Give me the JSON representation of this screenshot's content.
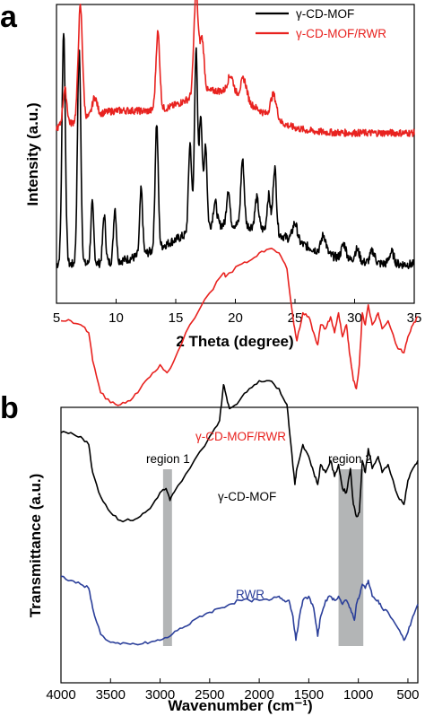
{
  "chart_data": [
    {
      "panel_label": "a",
      "type": "line",
      "xlabel": "2 Theta (degree)",
      "ylabel": "Intensity (a.u.)",
      "xlim": [
        5,
        35
      ],
      "xticks": [
        "5",
        "10",
        "15",
        "20",
        "25",
        "30",
        "35"
      ],
      "y_tick_labels": false,
      "legend_position": "top-right",
      "series": [
        {
          "name": "γ-CD-MOF",
          "color": "#000000",
          "baseline": 0.13,
          "noise": 0.015,
          "peaks": [
            [
              5.6,
              0.78,
              0.14
            ],
            [
              6.9,
              0.72,
              0.14
            ],
            [
              8.0,
              0.2,
              0.12
            ],
            [
              9.0,
              0.16,
              0.12
            ],
            [
              9.9,
              0.18,
              0.12
            ],
            [
              12.1,
              0.22,
              0.12
            ],
            [
              13.4,
              0.42,
              0.13
            ],
            [
              16.2,
              0.3,
              0.13
            ],
            [
              16.7,
              0.6,
              0.13
            ],
            [
              17.1,
              0.38,
              0.13
            ],
            [
              17.5,
              0.28,
              0.12
            ],
            [
              18.3,
              0.08,
              0.15
            ],
            [
              19.4,
              0.12,
              0.13
            ],
            [
              20.6,
              0.22,
              0.14
            ],
            [
              21.8,
              0.1,
              0.15
            ],
            [
              22.8,
              0.12,
              0.14
            ],
            [
              23.3,
              0.22,
              0.14
            ],
            [
              25.0,
              0.06,
              0.2
            ],
            [
              27.4,
              0.06,
              0.2
            ],
            [
              29.1,
              0.05,
              0.2
            ],
            [
              30.2,
              0.04,
              0.2
            ],
            [
              31.5,
              0.04,
              0.2
            ],
            [
              33.1,
              0.04,
              0.2
            ]
          ],
          "humps": [
            [
              17.5,
              0.1,
              3.5
            ],
            [
              23.0,
              0.08,
              3.5
            ]
          ]
        },
        {
          "name": "γ-CD-MOF/RWR",
          "color": "#e8221f",
          "baseline": 0.57,
          "noise": 0.012,
          "peaks": [
            [
              5.7,
              0.12,
              0.17
            ],
            [
              7.0,
              0.38,
              0.18
            ],
            [
              8.2,
              0.06,
              0.2
            ],
            [
              13.5,
              0.26,
              0.16
            ],
            [
              16.7,
              0.34,
              0.18
            ],
            [
              17.2,
              0.18,
              0.18
            ],
            [
              19.6,
              0.06,
              0.25
            ],
            [
              20.7,
              0.07,
              0.25
            ],
            [
              23.2,
              0.08,
              0.25
            ]
          ],
          "humps": [
            [
              10.0,
              0.07,
              3.0
            ],
            [
              18.5,
              0.14,
              3.2
            ]
          ]
        }
      ]
    },
    {
      "panel_label": "b",
      "type": "line",
      "xlabel": "Wavenumber (cm⁻¹)",
      "ylabel": "Transmittance (a.u.)",
      "xlim": [
        4000,
        400
      ],
      "xticks": [
        "4000",
        "3500",
        "3000",
        "2500",
        "2000",
        "1500",
        "1000",
        "500"
      ],
      "y_tick_labels": false,
      "annotations": [
        {
          "text": "γ-CD-MOF/RWR",
          "color": "#e8221f"
        },
        {
          "text": "γ-CD-MOF",
          "color": "#000000"
        },
        {
          "text": "RWR",
          "color": "#2b3f9a"
        },
        {
          "text": "region 1",
          "color": "#000000"
        },
        {
          "text": "region 2",
          "color": "#000000"
        }
      ],
      "shaded_regions": [
        {
          "label": "region 1",
          "x": [
            2970,
            2880
          ]
        },
        {
          "label": "region 2",
          "x": [
            1200,
            950
          ]
        }
      ],
      "series": [
        {
          "name": "γ-CD-MOF/RWR",
          "color": "#e8221f",
          "offset": 0.58,
          "points": [
            [
              4000,
              0.23
            ],
            [
              3900,
              0.23
            ],
            [
              3800,
              0.22
            ],
            [
              3720,
              0.2
            ],
            [
              3680,
              0.13
            ],
            [
              3600,
              0.05
            ],
            [
              3500,
              0.025
            ],
            [
              3400,
              0.02
            ],
            [
              3300,
              0.03
            ],
            [
              3200,
              0.06
            ],
            [
              3100,
              0.09
            ],
            [
              3000,
              0.12
            ],
            [
              2930,
              0.1
            ],
            [
              2860,
              0.13
            ],
            [
              2700,
              0.22
            ],
            [
              2500,
              0.3
            ],
            [
              2360,
              0.35
            ],
            [
              2340,
              0.34
            ],
            [
              2200,
              0.37
            ],
            [
              2100,
              0.38
            ],
            [
              2000,
              0.4
            ],
            [
              1900,
              0.41
            ],
            [
              1800,
              0.4
            ],
            [
              1720,
              0.36
            ],
            [
              1650,
              0.22
            ],
            [
              1620,
              0.18
            ],
            [
              1560,
              0.25
            ],
            [
              1500,
              0.24
            ],
            [
              1450,
              0.2
            ],
            [
              1410,
              0.17
            ],
            [
              1380,
              0.22
            ],
            [
              1330,
              0.21
            ],
            [
              1280,
              0.24
            ],
            [
              1240,
              0.2
            ],
            [
              1200,
              0.25
            ],
            [
              1160,
              0.19
            ],
            [
              1120,
              0.22
            ],
            [
              1090,
              0.15
            ],
            [
              1050,
              0.08
            ],
            [
              1020,
              0.06
            ],
            [
              990,
              0.12
            ],
            [
              960,
              0.25
            ],
            [
              930,
              0.22
            ],
            [
              900,
              0.27
            ],
            [
              860,
              0.22
            ],
            [
              800,
              0.25
            ],
            [
              760,
              0.21
            ],
            [
              700,
              0.23
            ],
            [
              600,
              0.16
            ],
            [
              540,
              0.15
            ],
            [
              500,
              0.19
            ],
            [
              450,
              0.22
            ],
            [
              400,
              0.24
            ]
          ]
        },
        {
          "name": "γ-CD-MOF",
          "color": "#000000",
          "offset": 0.3,
          "points": [
            [
              4000,
              0.23
            ],
            [
              3900,
              0.23
            ],
            [
              3800,
              0.22
            ],
            [
              3720,
              0.2
            ],
            [
              3680,
              0.13
            ],
            [
              3600,
              0.07
            ],
            [
              3500,
              0.03
            ],
            [
              3400,
              0.01
            ],
            [
              3300,
              0.01
            ],
            [
              3200,
              0.02
            ],
            [
              3100,
              0.04
            ],
            [
              3000,
              0.08
            ],
            [
              2940,
              0.09
            ],
            [
              2900,
              0.06
            ],
            [
              2860,
              0.08
            ],
            [
              2700,
              0.14
            ],
            [
              2500,
              0.22
            ],
            [
              2400,
              0.26
            ],
            [
              2360,
              0.35
            ],
            [
              2340,
              0.33
            ],
            [
              2300,
              0.29
            ],
            [
              2200,
              0.31
            ],
            [
              2100,
              0.34
            ],
            [
              2000,
              0.36
            ],
            [
              1900,
              0.36
            ],
            [
              1800,
              0.34
            ],
            [
              1720,
              0.3
            ],
            [
              1680,
              0.2
            ],
            [
              1640,
              0.1
            ],
            [
              1620,
              0.14
            ],
            [
              1560,
              0.2
            ],
            [
              1500,
              0.17
            ],
            [
              1450,
              0.13
            ],
            [
              1410,
              0.1
            ],
            [
              1380,
              0.15
            ],
            [
              1330,
              0.13
            ],
            [
              1280,
              0.16
            ],
            [
              1240,
              0.12
            ],
            [
              1200,
              0.15
            ],
            [
              1160,
              0.09
            ],
            [
              1120,
              0.08
            ],
            [
              1080,
              0.14
            ],
            [
              1050,
              0.05
            ],
            [
              1020,
              0.02
            ],
            [
              990,
              0.03
            ],
            [
              960,
              0.16
            ],
            [
              930,
              0.13
            ],
            [
              900,
              0.19
            ],
            [
              860,
              0.14
            ],
            [
              800,
              0.17
            ],
            [
              760,
              0.13
            ],
            [
              700,
              0.15
            ],
            [
              600,
              0.07
            ],
            [
              540,
              0.05
            ],
            [
              500,
              0.11
            ],
            [
              450,
              0.14
            ],
            [
              400,
              0.16
            ]
          ]
        },
        {
          "name": "RWR",
          "color": "#2b3f9a",
          "offset": 0.0,
          "points": [
            [
              4000,
              0.17
            ],
            [
              3900,
              0.16
            ],
            [
              3800,
              0.15
            ],
            [
              3720,
              0.14
            ],
            [
              3680,
              0.09
            ],
            [
              3600,
              0.025
            ],
            [
              3500,
              0.005
            ],
            [
              3400,
              0.0
            ],
            [
              3300,
              0.0
            ],
            [
              3200,
              0.0
            ],
            [
              3100,
              0.005
            ],
            [
              3000,
              0.01
            ],
            [
              2900,
              0.02
            ],
            [
              2800,
              0.04
            ],
            [
              2700,
              0.05
            ],
            [
              2600,
              0.07
            ],
            [
              2500,
              0.08
            ],
            [
              2400,
              0.09
            ],
            [
              2300,
              0.1
            ],
            [
              2200,
              0.11
            ],
            [
              2100,
              0.11
            ],
            [
              2000,
              0.11
            ],
            [
              1900,
              0.11
            ],
            [
              1800,
              0.12
            ],
            [
              1750,
              0.11
            ],
            [
              1700,
              0.11
            ],
            [
              1660,
              0.07
            ],
            [
              1630,
              0.01
            ],
            [
              1600,
              0.06
            ],
            [
              1560,
              0.11
            ],
            [
              1500,
              0.12
            ],
            [
              1450,
              0.09
            ],
            [
              1410,
              0.02
            ],
            [
              1380,
              0.07
            ],
            [
              1330,
              0.11
            ],
            [
              1280,
              0.12
            ],
            [
              1240,
              0.11
            ],
            [
              1200,
              0.12
            ],
            [
              1160,
              0.1
            ],
            [
              1120,
              0.11
            ],
            [
              1080,
              0.09
            ],
            [
              1040,
              0.06
            ],
            [
              1020,
              0.1
            ],
            [
              990,
              0.12
            ],
            [
              960,
              0.15
            ],
            [
              930,
              0.14
            ],
            [
              900,
              0.16
            ],
            [
              860,
              0.12
            ],
            [
              800,
              0.11
            ],
            [
              760,
              0.09
            ],
            [
              700,
              0.08
            ],
            [
              600,
              0.04
            ],
            [
              540,
              0.01
            ],
            [
              500,
              0.03
            ],
            [
              450,
              0.07
            ],
            [
              400,
              0.1
            ]
          ]
        }
      ]
    }
  ]
}
